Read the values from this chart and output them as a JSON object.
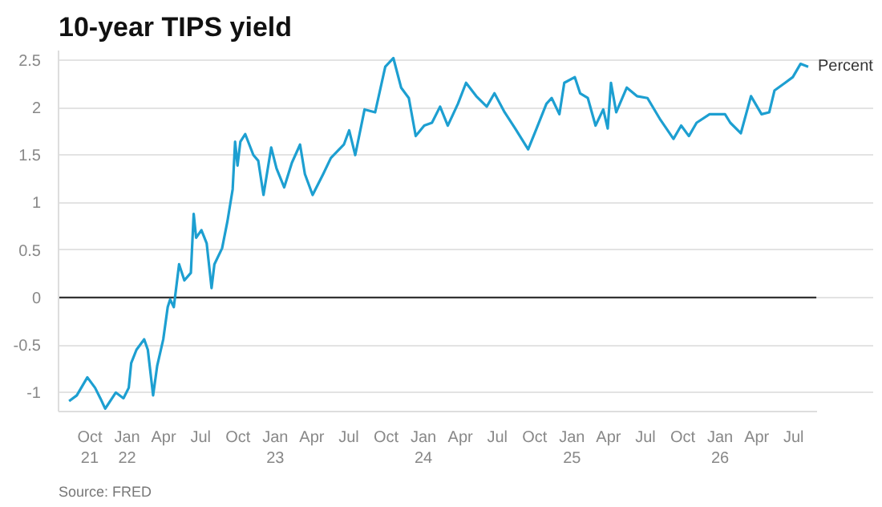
{
  "chart_data": {
    "type": "line",
    "title": "10-year TIPS yield",
    "annotations": [
      {
        "text": "Percent",
        "x": "2026-08-06",
        "y": 2.43
      },
      "Source: FRED"
    ],
    "x": [
      "2021-08-11",
      "2021-08-30",
      "2021-09-25",
      "2021-10-14",
      "2021-10-27",
      "2021-11-08",
      "2021-12-04",
      "2021-12-23",
      "2022-01-05",
      "2022-01-11",
      "2022-01-24",
      "2022-02-12",
      "2022-02-21",
      "2022-03-06",
      "2022-03-16",
      "2022-03-31",
      "2022-04-11",
      "2022-04-17",
      "2022-04-26",
      "2022-05-09",
      "2022-05-22",
      "2022-06-07",
      "2022-06-14",
      "2022-06-20",
      "2022-07-03",
      "2022-07-16",
      "2022-07-28",
      "2022-08-04",
      "2022-08-23",
      "2022-09-05",
      "2022-09-18",
      "2022-09-24",
      "2022-09-30",
      "2022-10-07",
      "2022-10-19",
      "2022-11-08",
      "2022-11-20",
      "2022-12-03",
      "2022-12-22",
      "2023-01-04",
      "2023-01-23",
      "2023-02-11",
      "2023-03-03",
      "2023-03-15",
      "2023-04-03",
      "2023-04-29",
      "2023-05-18",
      "2023-06-19",
      "2023-07-02",
      "2023-07-17",
      "2023-08-09",
      "2023-09-04",
      "2023-09-29",
      "2023-10-19",
      "2023-11-07",
      "2023-11-26",
      "2023-12-13",
      "2024-01-03",
      "2024-01-22",
      "2024-02-11",
      "2024-03-01",
      "2024-03-26",
      "2024-04-15",
      "2024-05-10",
      "2024-06-05",
      "2024-06-24",
      "2024-07-19",
      "2024-08-14",
      "2024-09-15",
      "2024-10-04",
      "2024-10-30",
      "2024-11-12",
      "2024-12-01",
      "2024-12-13",
      "2025-01-08",
      "2025-01-21",
      "2025-02-09",
      "2025-02-28",
      "2025-03-19",
      "2025-03-30",
      "2025-04-07",
      "2025-04-20",
      "2025-05-16",
      "2025-06-10",
      "2025-07-06",
      "2025-08-07",
      "2025-09-08",
      "2025-09-27",
      "2025-10-16",
      "2025-11-04",
      "2025-12-06",
      "2026-01-13",
      "2026-01-26",
      "2026-02-21",
      "2026-03-18",
      "2026-04-13",
      "2026-05-02",
      "2026-05-15",
      "2026-06-10",
      "2026-06-29",
      "2026-07-18",
      "2026-08-06"
    ],
    "series": [
      {
        "color": "#1d9fd1",
        "values": [
          -1.09,
          -1.03,
          -0.84,
          -0.95,
          -1.06,
          -1.17,
          -1.0,
          -1.06,
          -0.95,
          -0.69,
          -0.55,
          -0.44,
          -0.55,
          -1.03,
          -0.72,
          -0.44,
          -0.1,
          -0.02,
          -0.1,
          0.35,
          0.18,
          0.26,
          0.88,
          0.63,
          0.71,
          0.57,
          0.1,
          0.35,
          0.52,
          0.8,
          1.14,
          1.64,
          1.39,
          1.64,
          1.72,
          1.5,
          1.44,
          1.08,
          1.58,
          1.36,
          1.16,
          1.42,
          1.61,
          1.3,
          1.08,
          1.3,
          1.47,
          1.61,
          1.76,
          1.5,
          1.98,
          1.95,
          2.43,
          2.52,
          2.21,
          2.1,
          1.7,
          1.81,
          1.84,
          2.01,
          1.81,
          2.04,
          2.26,
          2.12,
          2.01,
          2.15,
          1.95,
          1.78,
          1.56,
          1.76,
          2.04,
          2.1,
          1.93,
          2.26,
          2.32,
          2.15,
          2.1,
          1.81,
          1.98,
          1.78,
          2.26,
          1.95,
          2.21,
          2.12,
          2.1,
          1.87,
          1.67,
          1.81,
          1.7,
          1.84,
          1.93,
          1.93,
          1.84,
          1.73,
          2.12,
          1.93,
          1.95,
          2.18,
          2.26,
          2.32,
          2.46,
          2.43
        ]
      }
    ],
    "xlim": [
      "2021-07-16",
      "2026-08-26"
    ],
    "xticks": [
      {
        "value": "2021-10-01",
        "label": "Oct\n21"
      },
      {
        "value": "2022-01-01",
        "label": "Jan\n22"
      },
      {
        "value": "2022-04-01",
        "label": "Apr"
      },
      {
        "value": "2022-07-01",
        "label": "Jul"
      },
      {
        "value": "2022-10-01",
        "label": "Oct"
      },
      {
        "value": "2023-01-01",
        "label": "Jan\n23"
      },
      {
        "value": "2023-04-01",
        "label": "Apr"
      },
      {
        "value": "2023-07-01",
        "label": "Jul"
      },
      {
        "value": "2023-10-01",
        "label": "Oct"
      },
      {
        "value": "2024-01-01",
        "label": "Jan\n24"
      },
      {
        "value": "2024-04-01",
        "label": "Apr"
      },
      {
        "value": "2024-07-01",
        "label": "Jul"
      },
      {
        "value": "2024-10-01",
        "label": "Oct"
      },
      {
        "value": "2025-01-01",
        "label": "Jan\n25"
      },
      {
        "value": "2025-04-01",
        "label": "Apr"
      },
      {
        "value": "2025-07-01",
        "label": "Jul"
      },
      {
        "value": "2025-10-01",
        "label": "Oct"
      },
      {
        "value": "2026-01-01",
        "label": "Jan\n26"
      },
      {
        "value": "2026-04-01",
        "label": "Apr"
      },
      {
        "value": "2026-07-01",
        "label": "Jul"
      }
    ],
    "ylim": [
      -1.2,
      2.6
    ],
    "yticks": [
      -1,
      -0.5,
      0,
      0.5,
      1,
      1.5,
      2,
      2.5
    ],
    "ref_lines": [
      {
        "axis": "y",
        "value": 0,
        "color": "#333333"
      }
    ],
    "grid": "y"
  }
}
